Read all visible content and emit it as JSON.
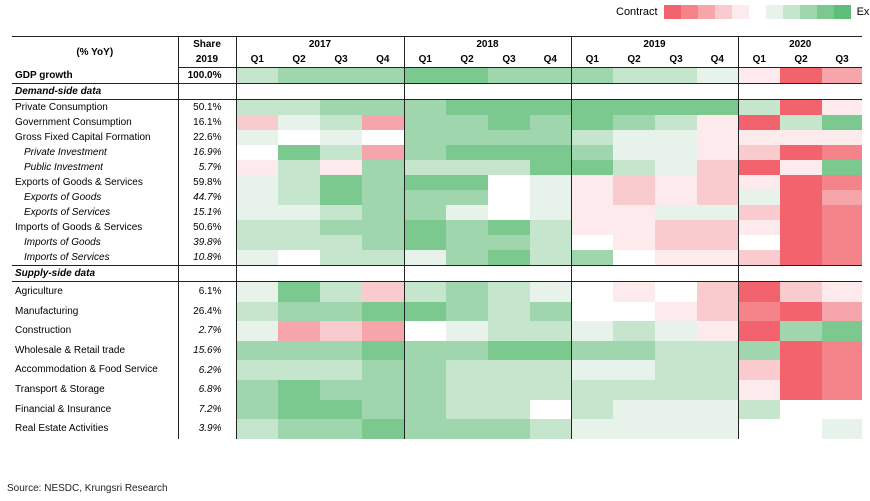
{
  "legend": {
    "contract_label": "Contract",
    "expand_label": "Expand",
    "swatches": [
      "#f2636d",
      "#f4838a",
      "#f6a6ab",
      "#f9cace",
      "#fceaec",
      "#ffffff",
      "#e7f3ea",
      "#c5e6cd",
      "#9fd6ad",
      "#7bc98f",
      "#5ebf7a"
    ]
  },
  "table": {
    "header": {
      "col1": "(% YoY)",
      "share_line1": "Share",
      "share_line2": "2019",
      "years": [
        "2017",
        "2018",
        "2019",
        "2020"
      ],
      "quarters": [
        "Q1",
        "Q2",
        "Q3",
        "Q4",
        "Q1",
        "Q2",
        "Q3",
        "Q4",
        "Q1",
        "Q2",
        "Q3",
        "Q4",
        "Q1",
        "Q2",
        "Q3"
      ]
    },
    "rows": [
      {
        "label": "GDP growth",
        "share": "100.0%",
        "style": "bold"
      },
      {
        "label": "Demand-side data",
        "share": "",
        "style": "section"
      },
      {
        "label": "Private Consumption",
        "share": "50.1%",
        "style": "normal"
      },
      {
        "label": "Government Consumption",
        "share": "16.1%",
        "style": "normal"
      },
      {
        "label": "Gross Fixed Capital Formation",
        "share": "22.6%",
        "style": "normal"
      },
      {
        "label": "Private Investment",
        "share": "16.9%",
        "style": "sub"
      },
      {
        "label": "Public Investment",
        "share": "5.7%",
        "style": "sub"
      },
      {
        "label": "Exports of Goods & Services",
        "share": "59.8%",
        "style": "normal"
      },
      {
        "label": "Exports of Goods",
        "share": "44.7%",
        "style": "sub"
      },
      {
        "label": "Exports of Services",
        "share": "15.1%",
        "style": "sub"
      },
      {
        "label": "Imports of Goods & Services",
        "share": "50.6%",
        "style": "normal"
      },
      {
        "label": "Imports of Goods",
        "share": "39.8%",
        "style": "sub"
      },
      {
        "label": "Imports of Services",
        "share": "10.8%",
        "style": "sub"
      },
      {
        "label": "Supply-side data",
        "share": "",
        "style": "section"
      },
      {
        "label": "Agriculture",
        "share": "6.1%",
        "style": "tall"
      },
      {
        "label": "Manufacturing",
        "share": "26.4%",
        "style": "tall"
      },
      {
        "label": "Construction",
        "share": "2.7%",
        "style": "tall-it"
      },
      {
        "label": "Wholesale & Retail trade",
        "share": "15.6%",
        "style": "tall-it"
      },
      {
        "label": "Accommodation & Food Service",
        "share": "6.2%",
        "style": "tall-it"
      },
      {
        "label": "Transport & Storage",
        "share": "6.8%",
        "style": "tall-it"
      },
      {
        "label": "Financial & Insurance",
        "share": "7.2%",
        "style": "tall-it"
      },
      {
        "label": "Real Estate Activities",
        "share": "3.9%",
        "style": "tall-it"
      }
    ]
  },
  "chart_data": {
    "type": "heatmap",
    "title": "(% YoY)",
    "color_scale": {
      "min_label": "Contract",
      "max_label": "Expand",
      "low_color": "#f2636d",
      "mid_color": "#ffffff",
      "high_color": "#5ebf7a"
    },
    "columns": [
      "2017 Q1",
      "2017 Q2",
      "2017 Q3",
      "2017 Q4",
      "2018 Q1",
      "2018 Q2",
      "2018 Q3",
      "2018 Q4",
      "2019 Q1",
      "2019 Q2",
      "2019 Q3",
      "2019 Q4",
      "2020 Q1",
      "2020 Q2",
      "2020 Q3"
    ],
    "rows": [
      "GDP growth",
      "Private Consumption",
      "Government Consumption",
      "Gross Fixed Capital Formation",
      "Private Investment",
      "Public Investment",
      "Exports of Goods & Services",
      "Exports of Goods",
      "Exports of Services",
      "Imports of Goods & Services",
      "Imports of Goods",
      "Imports of Services",
      "Agriculture",
      "Manufacturing",
      "Construction",
      "Wholesale & Retail trade",
      "Accommodation & Food Service",
      "Transport & Storage",
      "Financial & Insurance",
      "Real Estate Activities"
    ],
    "values": [
      [
        2,
        3,
        3,
        3,
        4,
        4,
        3,
        3,
        3,
        2,
        2,
        1,
        -1,
        -5,
        -3
      ],
      [
        2,
        2,
        3,
        3,
        3,
        4,
        4,
        4,
        4,
        4,
        4,
        4,
        2,
        -5,
        -1
      ],
      [
        -2,
        1,
        2,
        -3,
        3,
        3,
        4,
        3,
        4,
        3,
        2,
        -1,
        -5,
        2,
        4
      ],
      [
        1,
        0,
        1,
        0,
        3,
        3,
        3,
        3,
        2,
        1,
        1,
        -1,
        -1,
        -1,
        -1
      ],
      [
        0,
        4,
        2,
        -3,
        3,
        4,
        4,
        4,
        3,
        1,
        1,
        -1,
        -2,
        -5,
        -4
      ],
      [
        -1,
        2,
        -1,
        3,
        2,
        2,
        2,
        4,
        4,
        2,
        1,
        -2,
        -5,
        -1,
        4
      ],
      [
        1,
        2,
        4,
        3,
        4,
        4,
        0,
        1,
        -1,
        -2,
        -1,
        -2,
        -1,
        -5,
        -4
      ],
      [
        1,
        2,
        4,
        3,
        3,
        3,
        0,
        1,
        -1,
        -2,
        -1,
        -2,
        1,
        -5,
        -3
      ],
      [
        1,
        1,
        2,
        3,
        3,
        1,
        0,
        1,
        -1,
        -1,
        1,
        1,
        -2,
        -5,
        -4
      ],
      [
        2,
        2,
        3,
        3,
        4,
        3,
        4,
        2,
        -1,
        -1,
        -2,
        -2,
        -1,
        -5,
        -4
      ],
      [
        2,
        2,
        2,
        3,
        4,
        3,
        3,
        2,
        0,
        -1,
        -2,
        -2,
        0,
        -5,
        -4
      ],
      [
        1,
        0,
        2,
        2,
        1,
        3,
        4,
        2,
        3,
        0,
        -1,
        -1,
        -2,
        -5,
        -4
      ],
      [
        1,
        4,
        2,
        -2,
        2,
        3,
        2,
        1,
        0,
        -1,
        0,
        -2,
        -5,
        -2,
        -1
      ],
      [
        2,
        3,
        3,
        4,
        4,
        3,
        2,
        3,
        0,
        0,
        -1,
        -2,
        -4,
        -5,
        -3
      ],
      [
        1,
        -3,
        -2,
        -3,
        0,
        1,
        2,
        2,
        1,
        2,
        1,
        -1,
        -5,
        3,
        4
      ],
      [
        3,
        3,
        3,
        4,
        3,
        3,
        4,
        4,
        3,
        3,
        2,
        2,
        3,
        -5,
        -4
      ],
      [
        2,
        2,
        2,
        3,
        3,
        2,
        2,
        2,
        1,
        1,
        2,
        2,
        -2,
        -5,
        -4
      ],
      [
        3,
        4,
        3,
        3,
        3,
        2,
        2,
        2,
        2,
        2,
        2,
        2,
        -1,
        -5,
        -4
      ],
      [
        3,
        4,
        4,
        3,
        3,
        2,
        2,
        0,
        2,
        1,
        1,
        1,
        2,
        0,
        0
      ],
      [
        2,
        3,
        3,
        4,
        3,
        3,
        3,
        2,
        1,
        1,
        1,
        1,
        0,
        0,
        1
      ]
    ]
  },
  "source": "Source: NESDC, Krungsri Research"
}
